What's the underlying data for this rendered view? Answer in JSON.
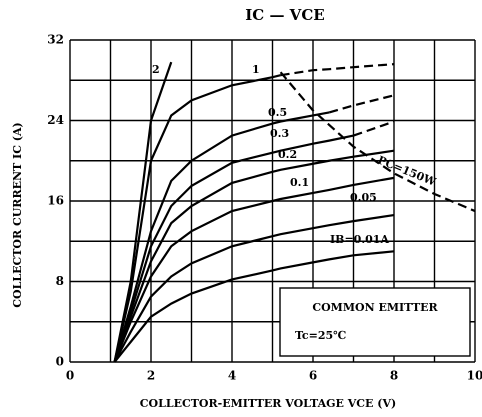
{
  "chart_data": {
    "type": "line",
    "title": "IC — VCE",
    "x_label": "COLLECTOR-EMITTER VOLTAGE  VCE (V)",
    "y_label": "COLLECTOR CURRENT  IC (A)",
    "xlim": [
      0,
      10
    ],
    "ylim": [
      0,
      32
    ],
    "xticks": [
      0,
      2,
      4,
      6,
      8,
      10
    ],
    "yticks": [
      0,
      8,
      16,
      24,
      32
    ],
    "xminor": [
      1,
      3,
      5,
      7,
      9
    ],
    "yminor": [
      4,
      12,
      20,
      28
    ],
    "grid": true,
    "x": [
      1.1,
      1.5,
      2,
      2.5,
      3,
      4,
      5,
      5.2,
      6,
      6.4,
      7,
      8
    ],
    "series": [
      {
        "name": "IB=0.01A",
        "color": "#000",
        "values": [
          0,
          2,
          4.5,
          5.8,
          6.8,
          8.2,
          9.1,
          9.3,
          9.9,
          10.2,
          10.6,
          11
        ]
      },
      {
        "name": "0.05",
        "color": "#000",
        "values": [
          0,
          3,
          6.5,
          8.5,
          9.8,
          11.5,
          12.5,
          12.7,
          13.3,
          13.6,
          14,
          14.6
        ]
      },
      {
        "name": "0.1",
        "color": "#000",
        "values": [
          0,
          4,
          8.5,
          11.5,
          13,
          15,
          16,
          16.2,
          16.8,
          17.1,
          17.6,
          18.3
        ]
      },
      {
        "name": "0.2",
        "color": "#000",
        "values": [
          0,
          4.5,
          10,
          13.8,
          15.5,
          17.8,
          18.9,
          19.1,
          19.7,
          20,
          20.4,
          21
        ]
      },
      {
        "name": "0.3",
        "color": "#000",
        "values": [
          0,
          5,
          11.5,
          15.5,
          17.5,
          19.8,
          20.8,
          21,
          21.7,
          22,
          22.5,
          null
        ],
        "dashed_values": [
          null,
          null,
          null,
          null,
          null,
          null,
          null,
          null,
          null,
          null,
          22.5,
          23.9
        ]
      },
      {
        "name": "0.5",
        "color": "#000",
        "values": [
          0,
          5.5,
          13,
          18,
          20,
          22.5,
          23.7,
          23.9,
          24.5,
          24.8,
          null,
          null
        ],
        "dashed_values": [
          null,
          null,
          null,
          null,
          null,
          null,
          null,
          null,
          null,
          24.8,
          25.5,
          26.5
        ]
      },
      {
        "name": "1",
        "color": "#000",
        "values": [
          0,
          7,
          20,
          24.5,
          26,
          27.5,
          28.3,
          28.5,
          null,
          null,
          null,
          null
        ],
        "dashed_values": [
          null,
          null,
          null,
          null,
          null,
          null,
          null,
          28.5,
          29,
          29.1,
          29.3,
          29.6
        ]
      },
      {
        "name": "2",
        "color": "#000",
        "values": [
          0,
          8,
          24,
          29.8,
          null,
          null,
          null,
          null,
          null,
          null,
          null,
          null
        ]
      }
    ],
    "power_limit": {
      "name": "PC=150W",
      "x": [
        5.2,
        6,
        7,
        8,
        9,
        10
      ],
      "values": [
        28.8,
        25,
        21.4,
        18.75,
        16.7,
        15
      ]
    },
    "annotations": [
      "COMMON EMITTER",
      "Tc=25℃"
    ]
  }
}
